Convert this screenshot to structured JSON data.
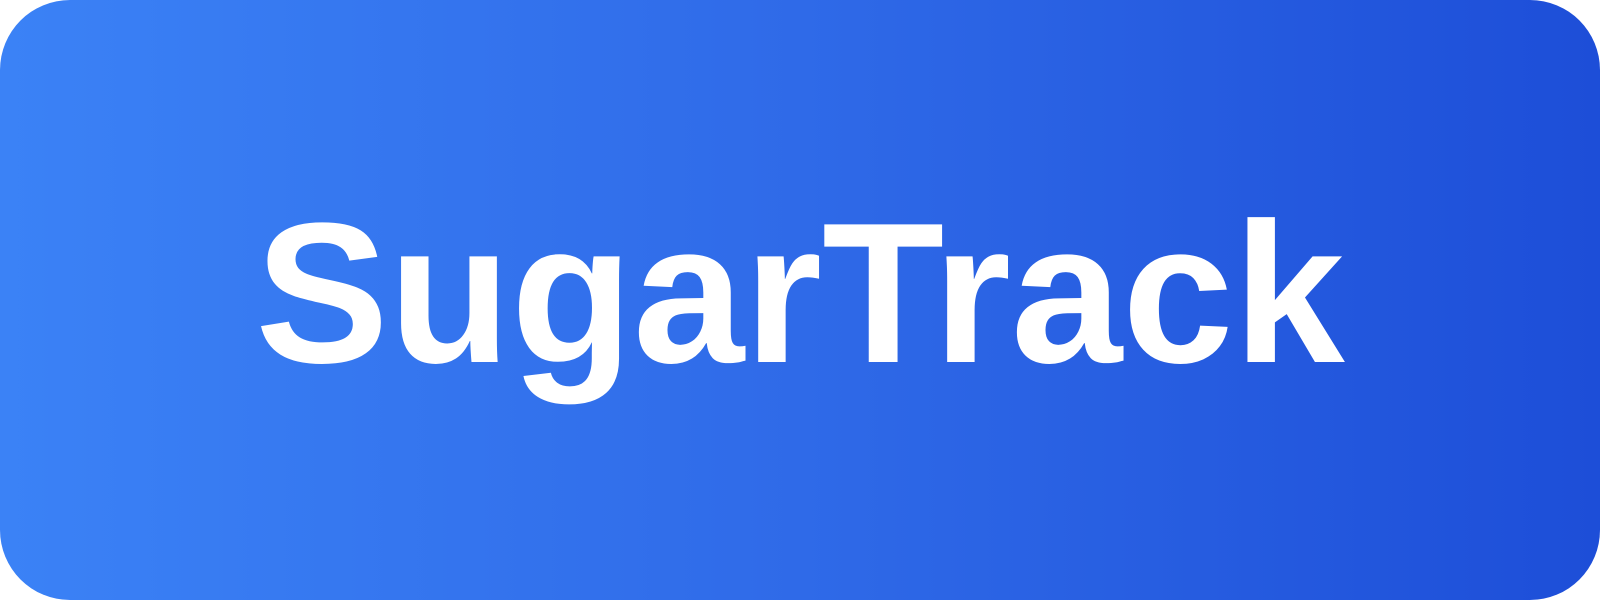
{
  "banner": {
    "title": "SugarTrack",
    "colors": {
      "gradient_start": "#3b82f6",
      "gradient_end": "#1d4ed8",
      "text": "#ffffff"
    }
  }
}
